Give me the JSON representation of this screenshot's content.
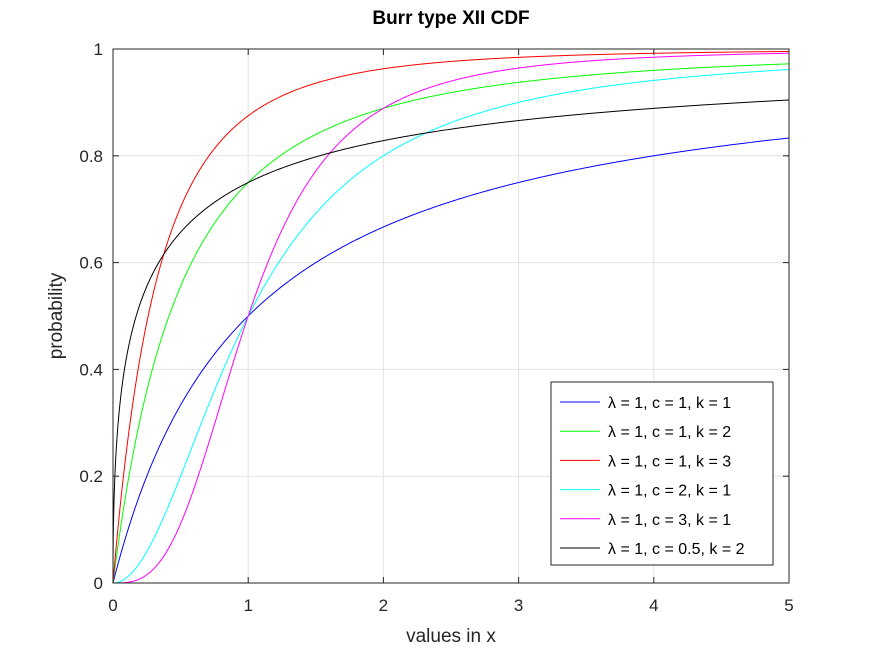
{
  "chart_data": {
    "type": "line",
    "title": "Burr type XII CDF",
    "xlabel": "values in x",
    "ylabel": "probability",
    "xlim": [
      0,
      5
    ],
    "ylim": [
      0,
      1
    ],
    "xticks": [
      0,
      1,
      2,
      3,
      4,
      5
    ],
    "xtick_labels": [
      "0",
      "1",
      "2",
      "3",
      "4",
      "5"
    ],
    "yticks": [
      0,
      0.2,
      0.4,
      0.6,
      0.8,
      1
    ],
    "ytick_labels": [
      "0",
      "0.2",
      "0.4",
      "0.6",
      "0.8",
      "1"
    ],
    "grid": true,
    "legend_position": "bottom-right",
    "x": [
      0,
      0.25,
      0.5,
      0.75,
      1,
      1.5,
      2,
      2.5,
      3,
      3.5,
      4,
      4.5,
      5
    ],
    "series": [
      {
        "name": "λ = 1, c = 1, k = 1",
        "color": "#0000ff",
        "lambda": 1,
        "c": 1,
        "k": 1,
        "values": [
          0,
          0.2,
          0.333,
          0.429,
          0.5,
          0.6,
          0.667,
          0.714,
          0.75,
          0.778,
          0.8,
          0.818,
          0.833
        ]
      },
      {
        "name": "λ = 1, c = 1, k = 2",
        "color": "#00ff00",
        "lambda": 1,
        "c": 1,
        "k": 2,
        "values": [
          0,
          0.36,
          0.556,
          0.673,
          0.75,
          0.84,
          0.889,
          0.918,
          0.938,
          0.951,
          0.96,
          0.967,
          0.972
        ]
      },
      {
        "name": "λ = 1, c = 1, k = 3",
        "color": "#ff0000",
        "lambda": 1,
        "c": 1,
        "k": 3,
        "values": [
          0,
          0.488,
          0.704,
          0.813,
          0.875,
          0.936,
          0.963,
          0.977,
          0.984,
          0.989,
          0.992,
          0.994,
          0.995
        ]
      },
      {
        "name": "λ = 1, c = 2, k = 1",
        "color": "#00ffff",
        "lambda": 1,
        "c": 2,
        "k": 1,
        "values": [
          0,
          0.059,
          0.2,
          0.36,
          0.5,
          0.692,
          0.8,
          0.862,
          0.9,
          0.925,
          0.941,
          0.953,
          0.962
        ]
      },
      {
        "name": "λ = 1, c = 3, k = 1",
        "color": "#ff00ff",
        "lambda": 1,
        "c": 3,
        "k": 1,
        "values": [
          0,
          0.015,
          0.111,
          0.297,
          0.5,
          0.771,
          0.889,
          0.94,
          0.964,
          0.977,
          0.985,
          0.989,
          0.992
        ]
      },
      {
        "name": "λ = 1, c = 0.5, k = 2",
        "color": "#000000",
        "lambda": 1,
        "c": 0.5,
        "k": 2,
        "values": [
          0,
          0.556,
          0.657,
          0.713,
          0.75,
          0.798,
          0.828,
          0.85,
          0.866,
          0.878,
          0.889,
          0.898,
          0.905
        ]
      }
    ]
  }
}
